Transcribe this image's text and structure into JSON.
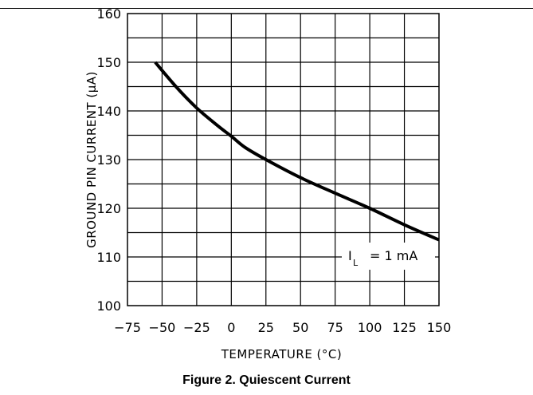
{
  "figure_caption": "Figure 2. Quiescent Current",
  "chart_data": {
    "type": "line",
    "title": "",
    "xlabel": "TEMPERATURE (°C)",
    "ylabel": "GROUND PIN CURRENT (µA)",
    "xlim": [
      -75,
      150
    ],
    "ylim": [
      100,
      160
    ],
    "x_ticks": [
      -75,
      -50,
      -25,
      0,
      25,
      50,
      75,
      100,
      125,
      150
    ],
    "x_tick_labels": [
      "−75",
      "−50",
      "−25",
      "0",
      "25",
      "50",
      "75",
      "100",
      "125",
      "150"
    ],
    "y_ticks": [
      100,
      110,
      120,
      130,
      140,
      150,
      160
    ],
    "y_tick_labels": [
      "100",
      "110",
      "120",
      "130",
      "140",
      "150",
      "160"
    ],
    "grid": true,
    "series": [
      {
        "x": [
          -55,
          -40,
          -25,
          -10,
          0,
          10,
          25,
          50,
          75,
          100,
          125,
          150
        ],
        "values": [
          150,
          145,
          140.6,
          137,
          134.8,
          132.5,
          130,
          126.3,
          123.1,
          120,
          116.6,
          113.5
        ]
      }
    ],
    "annotation": {
      "symbol": "I",
      "subscript": "L",
      "text": "= 1 mA",
      "position": "bottom-right"
    }
  }
}
